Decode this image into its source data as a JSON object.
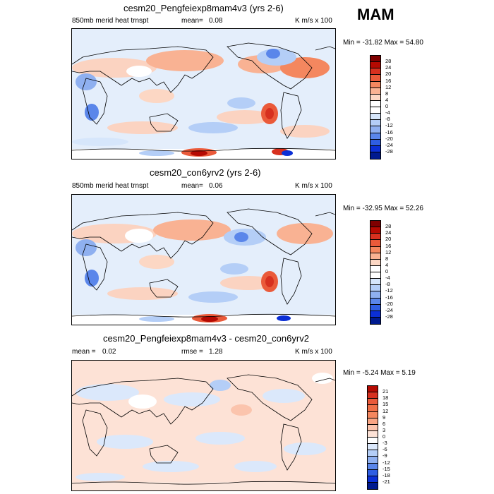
{
  "season": "MAM",
  "panels": [
    {
      "title": "cesm20_Pengfeiexp8mam4v3 (yrs 2-6)",
      "field": "850mb merid heat trnspt",
      "mean_label": "mean=",
      "mean_value": "0.08",
      "units": "K m/s x 100",
      "minmax": "Min = -31.82 Max =  54.80",
      "levels": [
        "28",
        "24",
        "20",
        "16",
        "12",
        "8",
        "4",
        "0",
        "-4",
        "-8",
        "-12",
        "-16",
        "-20",
        "-24",
        "-28"
      ],
      "colors": [
        "#7f0000",
        "#b50a02",
        "#d7301f",
        "#ea5a3a",
        "#f4875f",
        "#f9b293",
        "#fcd7c4",
        "#ffffff",
        "#ffffff",
        "#d6e6fb",
        "#b4cef7",
        "#8fb0f0",
        "#5a86ea",
        "#2f5ee3",
        "#0b2fd6",
        "#001a8f"
      ]
    },
    {
      "title": "cesm20_con6yrv2 (yrs 2-6)",
      "field": "850mb merid heat trnspt",
      "mean_label": "mean=",
      "mean_value": "0.06",
      "units": "K m/s x 100",
      "minmax": "Min = -32.95 Max =  52.26",
      "levels": [
        "28",
        "24",
        "20",
        "16",
        "12",
        "8",
        "4",
        "0",
        "-4",
        "-8",
        "-12",
        "-16",
        "-20",
        "-24",
        "-28"
      ],
      "colors": [
        "#7f0000",
        "#b50a02",
        "#d7301f",
        "#ea5a3a",
        "#f4875f",
        "#f9b293",
        "#fcd7c4",
        "#ffffff",
        "#ffffff",
        "#d6e6fb",
        "#b4cef7",
        "#8fb0f0",
        "#5a86ea",
        "#2f5ee3",
        "#0b2fd6",
        "#001a8f"
      ]
    },
    {
      "title": "cesm20_Pengfeiexp8mam4v3 - cesm20_con6yrv2",
      "mean_label": "mean =",
      "mean_value": "0.02",
      "rmse_label": "rmse =",
      "rmse_value": "1.28",
      "units": "K m/s x 100",
      "minmax": "Min =  -5.24 Max =   5.19",
      "levels": [
        "21",
        "18",
        "15",
        "12",
        "9",
        "6",
        "3",
        "0",
        "-3",
        "-6",
        "-9",
        "-12",
        "-15",
        "-18",
        "-21"
      ],
      "colors": [
        "#b50a02",
        "#d7301f",
        "#ea5a3a",
        "#f07048",
        "#f4875f",
        "#f9a584",
        "#fbc4ad",
        "#fde2d6",
        "#ffffff",
        "#dbe8fb",
        "#b4cef7",
        "#8fb0f0",
        "#5a86ea",
        "#2f5ee3",
        "#0b2fd6",
        "#001a8f"
      ]
    }
  ],
  "colors": {
    "ocean_base_top": "#ddebfb",
    "ocean_base_bottom": "#fbe1d6",
    "coast": "#000000"
  }
}
